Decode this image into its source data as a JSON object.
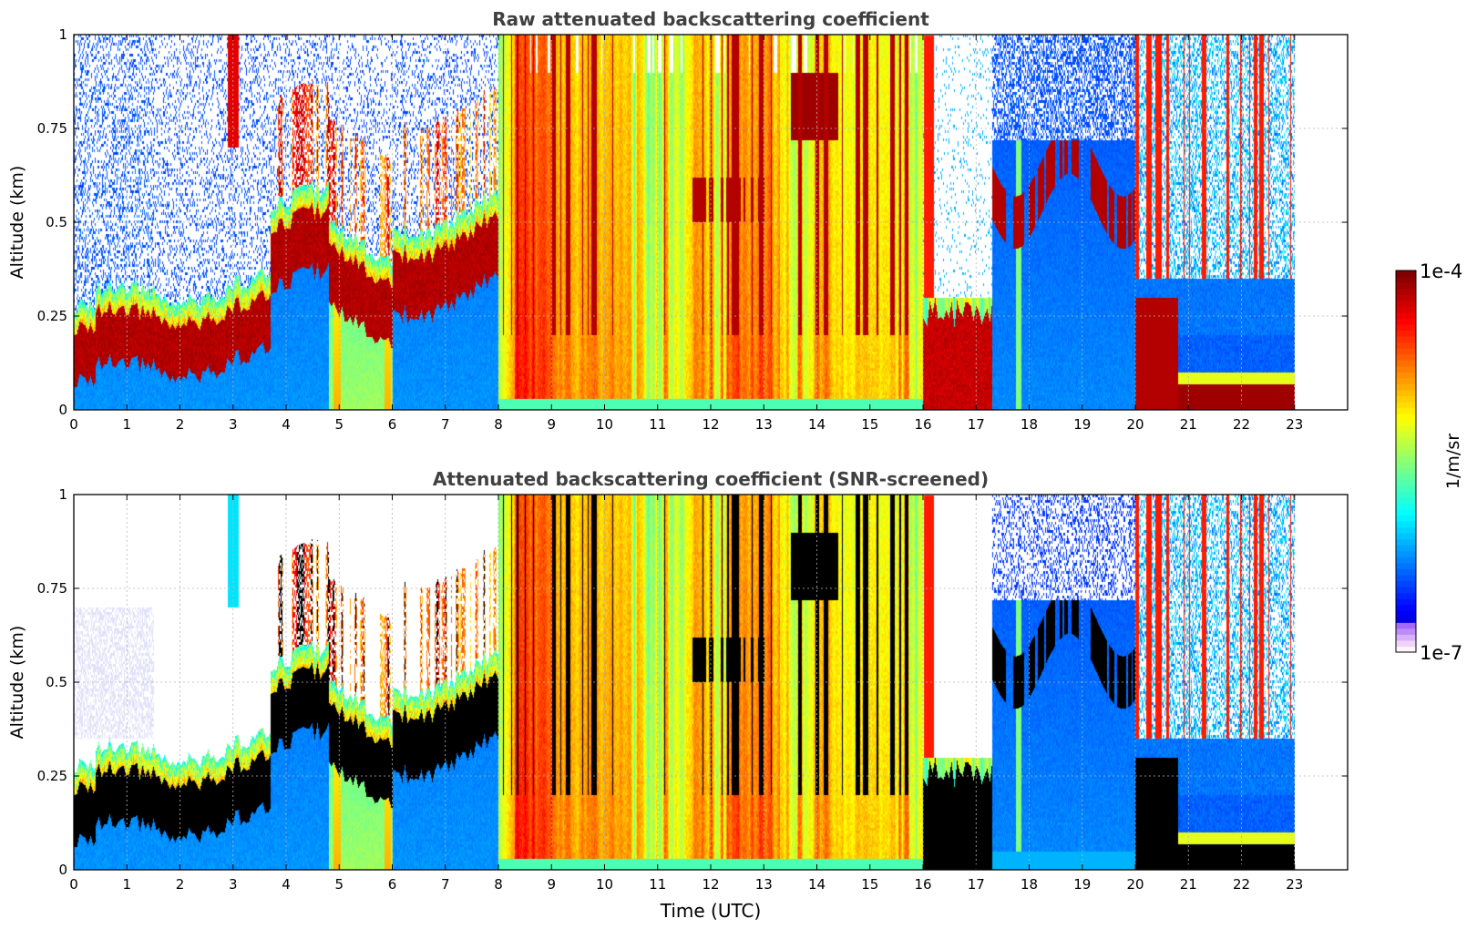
{
  "chart_data": [
    {
      "type": "heatmap",
      "title": "Raw attenuated backscattering coefficient",
      "xlabel": "",
      "ylabel": "Altitude (km)",
      "xlim": [
        0,
        24
      ],
      "ylim": [
        0,
        1
      ],
      "x_ticks": [
        "0",
        "1",
        "2",
        "3",
        "4",
        "5",
        "6",
        "7",
        "8",
        "9",
        "10",
        "11",
        "12",
        "13",
        "14",
        "15",
        "16",
        "17",
        "18",
        "19",
        "20",
        "21",
        "22",
        "23"
      ],
      "y_ticks": [
        "0",
        "0.25",
        "0.5",
        "0.75",
        "1"
      ],
      "grid": true,
      "data_extent_hours": [
        0,
        23
      ],
      "color_scale": "log10, jet, 1e-7 to 1e-4 1/m/sr",
      "features_description": "Blue lower layer (~1e-6) under a dark-red boundary-layer top rising from ~0.2 km at 1 UTC to ~0.45-0.55 km at 4-8 UTC; dense cloud/precip columns 8-16 UTC (yellow/orange/red); low red layer 16-17 UTC; blue 17-20 UTC with red patches at 0.5-0.7 km; red surface layer 20-23 UTC; white noise-free regions aloft."
    },
    {
      "type": "heatmap",
      "title": "Attenuated backscattering coefficient (SNR-screened)",
      "xlabel": "Time (UTC)",
      "ylabel": "Altitude (km)",
      "xlim": [
        0,
        24
      ],
      "ylim": [
        0,
        1
      ],
      "x_ticks": [
        "0",
        "1",
        "2",
        "3",
        "4",
        "5",
        "6",
        "7",
        "8",
        "9",
        "10",
        "11",
        "12",
        "13",
        "14",
        "15",
        "16",
        "17",
        "18",
        "19",
        "20",
        "21",
        "22",
        "23"
      ],
      "y_ticks": [
        "0",
        "0.25",
        "0.5",
        "0.75",
        "1"
      ],
      "grid": true,
      "data_extent_hours": [
        0,
        23
      ],
      "color_scale": "log10, jet, 1e-7 to 1e-4 1/m/sr",
      "features_description": "Same field as top panel with noisy pixels removed (white) and saturated values shown in black."
    }
  ],
  "colorbar": {
    "max_label": "1e-4",
    "min_label": "1e-7",
    "label": "1/m/sr",
    "colormap": "jet"
  }
}
